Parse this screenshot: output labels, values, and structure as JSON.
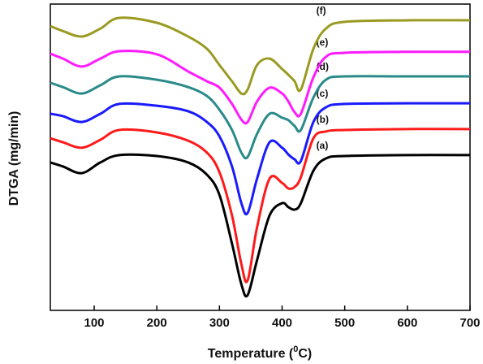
{
  "chart_data": {
    "type": "line",
    "x_label": [
      "Temperature (",
      "0",
      "C)"
    ],
    "y_label": "DTGA (mg/min)",
    "xlim": [
      30,
      700
    ],
    "ylim": [
      0,
      100
    ],
    "xticks": [
      100,
      200,
      300,
      400,
      500,
      600,
      700
    ],
    "x": [
      30,
      50,
      80,
      110,
      140,
      200,
      250,
      280,
      300,
      320,
      335,
      345,
      360,
      380,
      400,
      410,
      420,
      430,
      450,
      470,
      500,
      600,
      700
    ],
    "series": [
      {
        "name": "(a)",
        "color": "#000000",
        "values": [
          48.3,
          47.0,
          44.8,
          48.3,
          50.7,
          50.4,
          48.3,
          44.3,
          37.7,
          21.8,
          8.5,
          5.0,
          16.4,
          31.0,
          35.0,
          33.7,
          32.9,
          35.0,
          45.6,
          49.6,
          50.4,
          50.7,
          50.7
        ]
      },
      {
        "name": "(b)",
        "color": "#ff1a1a",
        "values": [
          56.2,
          54.9,
          53.1,
          55.7,
          58.9,
          58.1,
          55.4,
          51.5,
          45.1,
          31.0,
          15.1,
          9.8,
          27.1,
          43.0,
          41.6,
          39.8,
          40.3,
          43.5,
          56.2,
          58.4,
          58.9,
          59.2,
          59.2
        ]
      },
      {
        "name": "(c)",
        "color": "#1a1aff",
        "values": [
          64.2,
          63.4,
          61.5,
          64.2,
          67.4,
          66.8,
          65.0,
          61.5,
          56.8,
          47.0,
          35.0,
          31.8,
          43.0,
          54.9,
          53.1,
          50.9,
          49.3,
          48.8,
          61.5,
          66.3,
          67.4,
          67.6,
          67.6
        ]
      },
      {
        "name": "(d)",
        "color": "#2a8a8a",
        "values": [
          74.3,
          72.9,
          70.8,
          73.5,
          76.4,
          75.3,
          72.9,
          70.0,
          65.5,
          58.9,
          51.5,
          50.1,
          57.6,
          64.2,
          62.9,
          62.1,
          60.2,
          58.9,
          69.5,
          75.3,
          76.4,
          76.4,
          76.4
        ]
      },
      {
        "name": "(e)",
        "color": "#ff1aff",
        "values": [
          83.8,
          82.2,
          79.6,
          82.2,
          84.6,
          83.6,
          78.0,
          74.8,
          72.7,
          67.4,
          62.3,
          61.5,
          68.2,
          72.7,
          70.8,
          68.2,
          64.7,
          64.2,
          76.1,
          82.8,
          84.1,
          84.4,
          84.4
        ]
      },
      {
        "name": "(f)",
        "color": "#9a9a22",
        "values": [
          92.8,
          91.2,
          89.4,
          92.0,
          95.5,
          93.9,
          89.4,
          85.4,
          80.1,
          74.8,
          70.8,
          72.1,
          80.1,
          82.2,
          78.8,
          76.9,
          74.8,
          72.1,
          85.4,
          92.0,
          94.2,
          94.7,
          94.7
        ]
      }
    ]
  }
}
